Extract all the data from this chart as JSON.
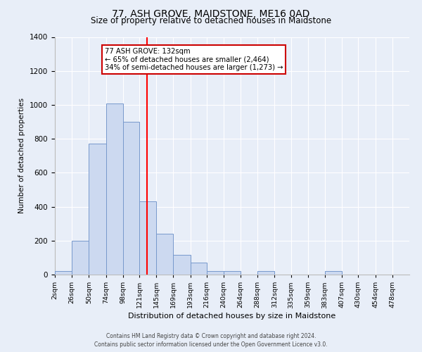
{
  "title": "77, ASH GROVE, MAIDSTONE, ME16 0AD",
  "subtitle": "Size of property relative to detached houses in Maidstone",
  "xlabel": "Distribution of detached houses by size in Maidstone",
  "ylabel": "Number of detached properties",
  "bar_color": "#ccd9f0",
  "bar_edge_color": "#7799cc",
  "fig_bg": "#e8eef8",
  "ax_bg": "#e8eef8",
  "grid_color": "#ffffff",
  "red_line_x": 132,
  "annotation_title": "77 ASH GROVE: 132sqm",
  "annotation_line1": "← 65% of detached houses are smaller (2,464)",
  "annotation_line2": "34% of semi-detached houses are larger (1,273) →",
  "bin_edges": [
    2,
    26,
    50,
    74,
    98,
    121,
    145,
    169,
    193,
    216,
    240,
    264,
    288,
    312,
    335,
    359,
    383,
    407,
    430,
    454,
    478,
    502
  ],
  "bin_counts": [
    20,
    200,
    770,
    1010,
    900,
    430,
    240,
    115,
    70,
    20,
    20,
    0,
    20,
    0,
    0,
    0,
    20,
    0,
    0,
    0,
    0
  ],
  "ylim": [
    0,
    1400
  ],
  "yticks": [
    0,
    200,
    400,
    600,
    800,
    1000,
    1200,
    1400
  ],
  "tick_labels": [
    "2sqm",
    "26sqm",
    "50sqm",
    "74sqm",
    "98sqm",
    "121sqm",
    "145sqm",
    "169sqm",
    "193sqm",
    "216sqm",
    "240sqm",
    "264sqm",
    "288sqm",
    "312sqm",
    "335sqm",
    "359sqm",
    "383sqm",
    "407sqm",
    "430sqm",
    "454sqm",
    "478sqm"
  ],
  "footer1": "Contains HM Land Registry data © Crown copyright and database right 2024.",
  "footer2": "Contains public sector information licensed under the Open Government Licence v3.0."
}
